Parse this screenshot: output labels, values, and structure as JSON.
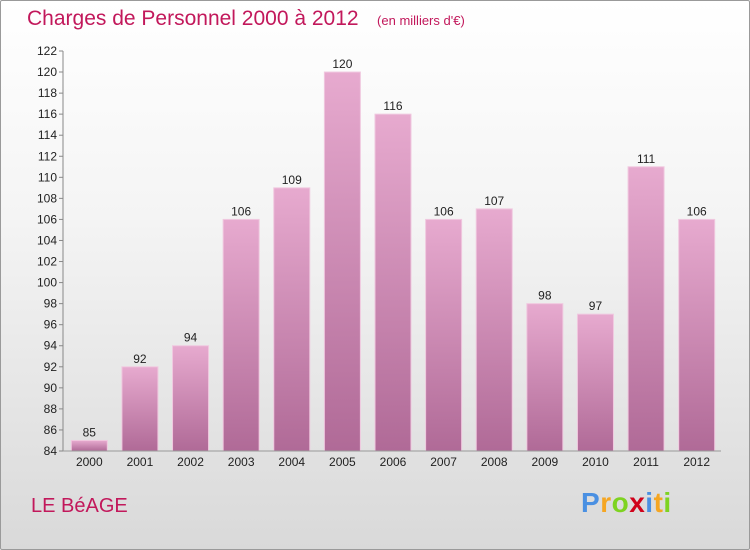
{
  "header": {
    "title": "Charges de Personnel 2000 à 2012",
    "units": "(en milliers d'€)"
  },
  "footer": {
    "commune": "LE BéAGE",
    "logo": [
      "P",
      "r",
      "o",
      "x",
      "i",
      "t",
      "i"
    ]
  },
  "colors": {
    "title": "#c2185b",
    "bar_top": "#e7aacf",
    "bar_bottom": "#b06a97",
    "logo": [
      "#4a90e2",
      "#f5a623",
      "#7ed321",
      "#d0021b",
      "#4a90e2",
      "#f5a623",
      "#7ed321"
    ]
  },
  "chart_data": {
    "type": "bar",
    "categories": [
      "2000",
      "2001",
      "2002",
      "2003",
      "2004",
      "2005",
      "2006",
      "2007",
      "2008",
      "2009",
      "2010",
      "2011",
      "2012"
    ],
    "values": [
      85,
      92,
      94,
      106,
      109,
      120,
      116,
      106,
      107,
      98,
      97,
      111,
      106
    ],
    "ylim": [
      84,
      122
    ],
    "yticks": [
      84,
      86,
      88,
      90,
      92,
      94,
      96,
      98,
      100,
      102,
      104,
      106,
      108,
      110,
      112,
      114,
      116,
      118,
      120,
      122
    ],
    "grid": false,
    "data_labels": true
  }
}
